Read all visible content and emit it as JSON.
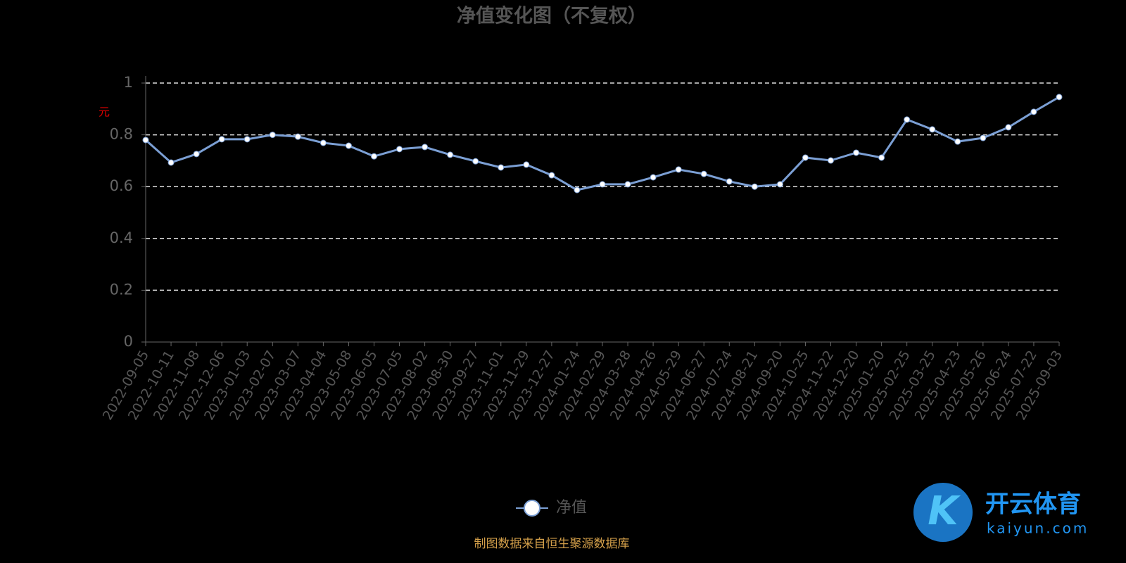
{
  "chart_data": {
    "type": "line",
    "title": "净值变化图（不复权）",
    "y_axis_label": "元",
    "categories": [
      "2022-09-05",
      "2022-10-11",
      "2022-11-08",
      "2022-12-06",
      "2023-01-03",
      "2023-02-07",
      "2023-03-07",
      "2023-04-04",
      "2023-05-08",
      "2023-06-05",
      "2023-07-05",
      "2023-08-02",
      "2023-08-30",
      "2023-09-27",
      "2023-11-01",
      "2023-11-29",
      "2023-12-27",
      "2024-01-24",
      "2024-02-29",
      "2024-03-28",
      "2024-04-26",
      "2024-05-29",
      "2024-06-27",
      "2024-07-24",
      "2024-08-21",
      "2024-09-20",
      "2024-10-25",
      "2024-11-22",
      "2024-12-20",
      "2025-01-20",
      "2025-02-25",
      "2025-03-25",
      "2025-04-23",
      "2025-05-26",
      "2025-06-24",
      "2025-07-22",
      "2025-09-03"
    ],
    "series": [
      {
        "name": "净值",
        "color": "#7b9fd4",
        "values": [
          0.78,
          0.693,
          0.726,
          0.783,
          0.783,
          0.8,
          0.793,
          0.769,
          0.758,
          0.717,
          0.745,
          0.753,
          0.723,
          0.698,
          0.674,
          0.685,
          0.644,
          0.587,
          0.609,
          0.609,
          0.636,
          0.666,
          0.649,
          0.62,
          0.6,
          0.609,
          0.712,
          0.701,
          0.731,
          0.712,
          0.859,
          0.821,
          0.774,
          0.788,
          0.829,
          0.889,
          0.946
        ]
      }
    ],
    "ylim": [
      0,
      1
    ],
    "yticks": [
      0,
      0.2,
      0.4,
      0.6,
      0.8,
      1
    ],
    "grid": true,
    "source_note": "制图数据来自恒生聚源数据库"
  },
  "watermark": {
    "brand": "开云体育",
    "site": "kaiyun.com"
  }
}
